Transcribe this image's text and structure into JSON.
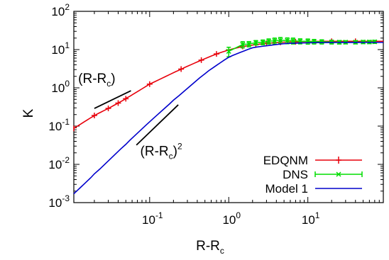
{
  "chart_data": {
    "type": "line",
    "title": "",
    "xlabel": {
      "base": "R-R",
      "sub": "c"
    },
    "ylabel": "K",
    "xscale": "log",
    "yscale": "log",
    "xlim": [
      0.011,
      90
    ],
    "ylim": [
      0.001,
      100
    ],
    "grid": false,
    "legend_position": "bottom-right",
    "x_ticks": [
      {
        "value": 0.1,
        "base": "10",
        "exp": "-1"
      },
      {
        "value": 1,
        "base": "10",
        "exp": "0"
      },
      {
        "value": 10,
        "base": "10",
        "exp": "1"
      }
    ],
    "y_ticks": [
      {
        "value": 0.001,
        "base": "10",
        "exp": "-3"
      },
      {
        "value": 0.01,
        "base": "10",
        "exp": "-2"
      },
      {
        "value": 0.1,
        "base": "10",
        "exp": "-1"
      },
      {
        "value": 1,
        "base": "10",
        "exp": "0"
      },
      {
        "value": 10,
        "base": "10",
        "exp": "1"
      },
      {
        "value": 100,
        "base": "10",
        "exp": "2"
      }
    ],
    "annotations": [
      {
        "base": "(R-R",
        "sub": "c",
        "close": ")",
        "sup": "",
        "slope": 1,
        "x1": 0.02,
        "x2": 0.058,
        "y1": 0.29,
        "y2": 0.84,
        "tx": 0.0125,
        "ty": 1.35
      },
      {
        "base": "(R-R",
        "sub": "c",
        "close": ")",
        "sup": "2",
        "slope": 2,
        "x1": 0.068,
        "x2": 0.23,
        "y1": 0.032,
        "y2": 0.36,
        "tx": 0.076,
        "ty": 0.017
      }
    ],
    "series": [
      {
        "name": "EDQNM",
        "color": "#e8000b",
        "marker": "plus",
        "x": [
          0.011,
          0.02,
          0.03,
          0.04,
          0.05,
          0.1,
          0.25,
          0.45,
          0.7,
          1.0,
          1.5,
          2.2,
          3.0,
          4.5,
          7.0,
          10,
          20,
          40,
          90
        ],
        "y": [
          0.087,
          0.19,
          0.29,
          0.4,
          0.52,
          1.25,
          3.1,
          5.3,
          7.7,
          9.8,
          12.1,
          13.5,
          14.6,
          15.5,
          16.0,
          16.3,
          16.5,
          16.5,
          16.5
        ]
      },
      {
        "name": "DNS",
        "color": "#00dd00",
        "marker": "x-errorbar",
        "x": [
          1.0,
          1.5,
          1.8,
          2.2,
          2.7,
          3.2,
          3.8,
          4.5,
          5.5,
          6.5,
          8,
          10,
          12,
          15,
          20,
          25,
          30,
          40,
          50,
          60,
          70
        ],
        "y": [
          9.0,
          13.6,
          14.0,
          15.2,
          15.6,
          16.5,
          17.0,
          17.5,
          17.2,
          17.0,
          16.6,
          16.4,
          16.2,
          16.0,
          15.8,
          15.6,
          15.6,
          15.6,
          15.8,
          15.8,
          16.0
        ],
        "err": [
          2.5,
          2.5,
          2.2,
          2.0,
          2.2,
          2.5,
          3.0,
          3.2,
          3.0,
          3.0,
          2.5,
          2.5,
          2.2,
          2.0,
          1.8,
          1.6,
          1.5,
          1.5,
          1.5,
          1.5,
          1.5
        ]
      },
      {
        "name": "Model 1",
        "color": "#0000cc",
        "marker": "none",
        "x": [
          0.011,
          0.02,
          0.05,
          0.1,
          0.2,
          0.5,
          1.0,
          2.0,
          5.0,
          10,
          20,
          50,
          90
        ],
        "y": [
          0.0017,
          0.0055,
          0.034,
          0.13,
          0.47,
          2.4,
          6.4,
          11.3,
          14.4,
          15.1,
          15.3,
          15.4,
          15.4
        ]
      }
    ]
  }
}
